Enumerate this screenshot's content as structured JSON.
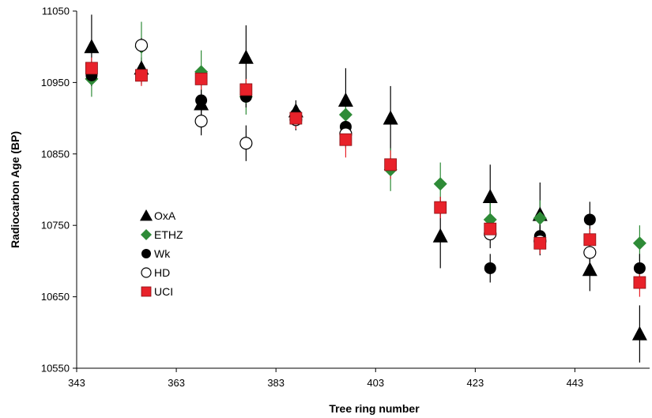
{
  "chart_data": {
    "type": "scatter",
    "title": "",
    "xlabel": "Tree ring number",
    "ylabel": "Radiocarbon Age (BP)",
    "xlim": [
      343,
      458
    ],
    "ylim": [
      10550,
      11050
    ],
    "xticks": [
      343,
      363,
      383,
      403,
      423,
      443
    ],
    "yticks": [
      10550,
      10650,
      10750,
      10850,
      10950,
      11050
    ],
    "legend_position": "left",
    "grid": false,
    "series": [
      {
        "name": "OxA",
        "marker": "triangle",
        "color": "#000000",
        "points": [
          {
            "x": 346,
            "y": 11000,
            "err": 45
          },
          {
            "x": 356,
            "y": 10970,
            "err": 15
          },
          {
            "x": 368,
            "y": 10920,
            "err": 15
          },
          {
            "x": 377,
            "y": 10985,
            "err": 45
          },
          {
            "x": 387,
            "y": 10910,
            "err": 15
          },
          {
            "x": 397,
            "y": 10925,
            "err": 45
          },
          {
            "x": 406,
            "y": 10900,
            "err": 45
          },
          {
            "x": 416,
            "y": 10735,
            "err": 45
          },
          {
            "x": 426,
            "y": 10790,
            "err": 45
          },
          {
            "x": 436,
            "y": 10765,
            "err": 45
          },
          {
            "x": 446,
            "y": 10688,
            "err": 30
          },
          {
            "x": 456,
            "y": 10598,
            "err": 40
          }
        ]
      },
      {
        "name": "ETHZ",
        "marker": "diamond",
        "color": "#2e8b37",
        "points": [
          {
            "x": 346,
            "y": 10955,
            "err": 25
          },
          {
            "x": 356,
            "y": 11000,
            "err": 35
          },
          {
            "x": 368,
            "y": 10965,
            "err": 30
          },
          {
            "x": 377,
            "y": 10930,
            "err": 25
          },
          {
            "x": 397,
            "y": 10905,
            "err": 20
          },
          {
            "x": 406,
            "y": 10828,
            "err": 30
          },
          {
            "x": 416,
            "y": 10808,
            "err": 30
          },
          {
            "x": 426,
            "y": 10758,
            "err": 25
          },
          {
            "x": 436,
            "y": 10760,
            "err": 25
          },
          {
            "x": 456,
            "y": 10725,
            "err": 25
          }
        ]
      },
      {
        "name": "Wk",
        "marker": "filled-circle",
        "color": "#000000",
        "points": [
          {
            "x": 346,
            "y": 10960,
            "err": 15
          },
          {
            "x": 356,
            "y": 10962,
            "err": 15
          },
          {
            "x": 368,
            "y": 10925,
            "err": 15
          },
          {
            "x": 377,
            "y": 10930,
            "err": 15
          },
          {
            "x": 387,
            "y": 10905,
            "err": 15
          },
          {
            "x": 397,
            "y": 10888,
            "err": 15
          },
          {
            "x": 416,
            "y": 10775,
            "err": 15
          },
          {
            "x": 426,
            "y": 10690,
            "err": 20
          },
          {
            "x": 436,
            "y": 10735,
            "err": 25
          },
          {
            "x": 446,
            "y": 10758,
            "err": 25
          },
          {
            "x": 456,
            "y": 10690,
            "err": 20
          }
        ]
      },
      {
        "name": "HD",
        "marker": "open-circle",
        "color": "#000000",
        "points": [
          {
            "x": 356,
            "y": 11002,
            "err": 10
          },
          {
            "x": 368,
            "y": 10896,
            "err": 20
          },
          {
            "x": 377,
            "y": 10865,
            "err": 25
          },
          {
            "x": 387,
            "y": 10898,
            "err": 15
          },
          {
            "x": 397,
            "y": 10878,
            "err": 20
          },
          {
            "x": 426,
            "y": 10738,
            "err": 20
          },
          {
            "x": 436,
            "y": 10728,
            "err": 20
          },
          {
            "x": 446,
            "y": 10712,
            "err": 20
          }
        ]
      },
      {
        "name": "UCI",
        "marker": "square",
        "color": "#e8222a",
        "points": [
          {
            "x": 346,
            "y": 10970,
            "err": 15
          },
          {
            "x": 356,
            "y": 10960,
            "err": 15
          },
          {
            "x": 368,
            "y": 10955,
            "err": 15
          },
          {
            "x": 377,
            "y": 10940,
            "err": 15
          },
          {
            "x": 387,
            "y": 10900,
            "err": 15
          },
          {
            "x": 397,
            "y": 10870,
            "err": 25
          },
          {
            "x": 406,
            "y": 10835,
            "err": 20
          },
          {
            "x": 416,
            "y": 10775,
            "err": 15
          },
          {
            "x": 426,
            "y": 10745,
            "err": 15
          },
          {
            "x": 436,
            "y": 10725,
            "err": 15
          },
          {
            "x": 446,
            "y": 10730,
            "err": 15
          },
          {
            "x": 456,
            "y": 10670,
            "err": 20
          }
        ]
      }
    ]
  }
}
